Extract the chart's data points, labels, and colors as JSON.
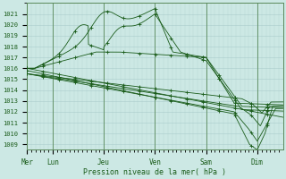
{
  "bg_color": "#cce8e4",
  "grid_color": "#aacccc",
  "line_color": "#1a5c1a",
  "ylabel_ticks": [
    1009,
    1010,
    1011,
    1012,
    1013,
    1014,
    1015,
    1016,
    1017,
    1018,
    1019,
    1020,
    1021
  ],
  "ylim": [
    1008.5,
    1022.0
  ],
  "xlabel": "Pression niveau de la mer( hPa )",
  "day_labels": [
    "Mer",
    "Lun",
    "Jeu",
    "Ven",
    "Sam",
    "Dim"
  ],
  "day_positions": [
    0.0,
    0.167,
    0.5,
    0.833,
    1.167,
    1.5
  ],
  "xlim": [
    0.0,
    1.667
  ]
}
